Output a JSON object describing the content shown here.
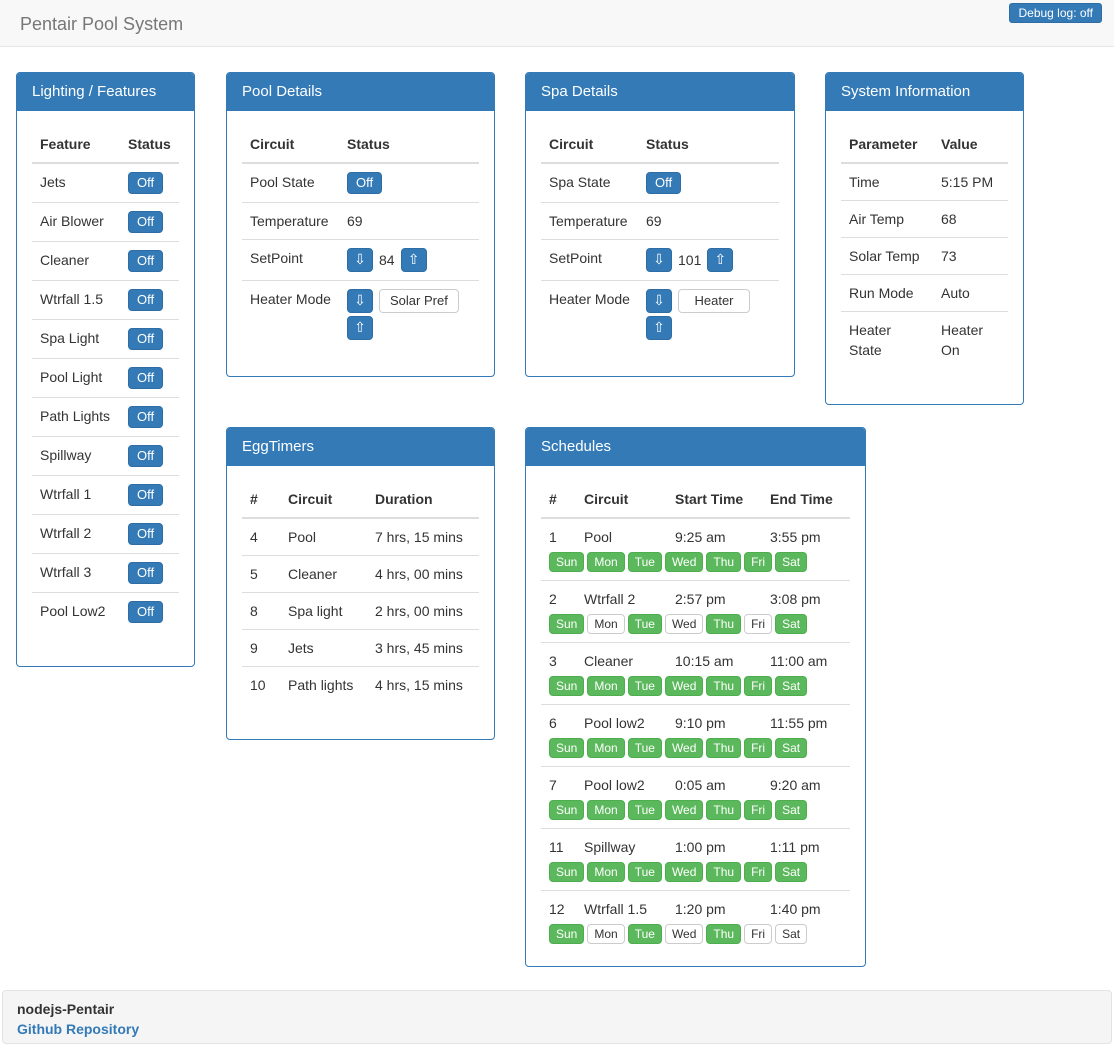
{
  "navbar": {
    "title": "Pentair Pool System",
    "debug_button_label": "Debug log: off"
  },
  "colors": {
    "primary": "#337ab7",
    "primary_border": "#2e6da4",
    "success": "#5cb85c",
    "success_border": "#4cae4c",
    "navbar_bg": "#f8f8f8",
    "panel_border": "#337ab7",
    "link": "#337ab7",
    "footer_bg": "#f5f5f5"
  },
  "controls": {
    "down_glyph": "⇩",
    "up_glyph": "⇧"
  },
  "lighting": {
    "title": "Lighting / Features",
    "columns": {
      "feature": "Feature",
      "status": "Status"
    },
    "rows": [
      {
        "feature": "Jets",
        "status": "Off"
      },
      {
        "feature": "Air Blower",
        "status": "Off"
      },
      {
        "feature": "Cleaner",
        "status": "Off"
      },
      {
        "feature": "Wtrfall 1.5",
        "status": "Off"
      },
      {
        "feature": "Spa Light",
        "status": "Off"
      },
      {
        "feature": "Pool Light",
        "status": "Off"
      },
      {
        "feature": "Path Lights",
        "status": "Off"
      },
      {
        "feature": "Spillway",
        "status": "Off"
      },
      {
        "feature": "Wtrfall 1",
        "status": "Off"
      },
      {
        "feature": "Wtrfall 2",
        "status": "Off"
      },
      {
        "feature": "Wtrfall 3",
        "status": "Off"
      },
      {
        "feature": "Pool Low2",
        "status": "Off"
      }
    ]
  },
  "pool": {
    "title": "Pool Details",
    "columns": {
      "circuit": "Circuit",
      "status": "Status"
    },
    "state_label": "Pool State",
    "state_value": "Off",
    "temperature_label": "Temperature",
    "temperature_value": "69",
    "setpoint_label": "SetPoint",
    "setpoint_value": "84",
    "heater_mode_label": "Heater Mode",
    "heater_mode_value": "Solar Pref"
  },
  "spa": {
    "title": "Spa Details",
    "columns": {
      "circuit": "Circuit",
      "status": "Status"
    },
    "state_label": "Spa State",
    "state_value": "Off",
    "temperature_label": "Temperature",
    "temperature_value": "69",
    "setpoint_label": "SetPoint",
    "setpoint_value": "101",
    "heater_mode_label": "Heater Mode",
    "heater_mode_value": "Heater"
  },
  "system": {
    "title": "System Information",
    "columns": {
      "parameter": "Parameter",
      "value": "Value"
    },
    "rows": [
      {
        "parameter": "Time",
        "value": "5:15 PM"
      },
      {
        "parameter": "Air Temp",
        "value": "68"
      },
      {
        "parameter": "Solar Temp",
        "value": "73"
      },
      {
        "parameter": "Run Mode",
        "value": "Auto"
      },
      {
        "parameter": "Heater State",
        "value": "Heater On"
      }
    ]
  },
  "eggtimers": {
    "title": "EggTimers",
    "columns": {
      "id": "#",
      "circuit": "Circuit",
      "duration": "Duration"
    },
    "rows": [
      {
        "id": "4",
        "circuit": "Pool",
        "duration": "7 hrs, 15 mins"
      },
      {
        "id": "5",
        "circuit": "Cleaner",
        "duration": "4 hrs, 00 mins"
      },
      {
        "id": "8",
        "circuit": "Spa light",
        "duration": "2 hrs, 00 mins"
      },
      {
        "id": "9",
        "circuit": "Jets",
        "duration": "3 hrs, 45 mins"
      },
      {
        "id": "10",
        "circuit": "Path lights",
        "duration": "4 hrs, 15 mins"
      }
    ]
  },
  "schedules": {
    "title": "Schedules",
    "columns": {
      "id": "#",
      "circuit": "Circuit",
      "start": "Start Time",
      "end": "End Time"
    },
    "day_names": [
      "Sun",
      "Mon",
      "Tue",
      "Wed",
      "Thu",
      "Fri",
      "Sat"
    ],
    "rows": [
      {
        "id": "1",
        "circuit": "Pool",
        "start": "9:25 am",
        "end": "3:55 pm",
        "days": [
          1,
          1,
          1,
          1,
          1,
          1,
          1
        ]
      },
      {
        "id": "2",
        "circuit": "Wtrfall 2",
        "start": "2:57 pm",
        "end": "3:08 pm",
        "days": [
          1,
          0,
          1,
          0,
          1,
          0,
          1
        ]
      },
      {
        "id": "3",
        "circuit": "Cleaner",
        "start": "10:15 am",
        "end": "11:00 am",
        "days": [
          1,
          1,
          1,
          1,
          1,
          1,
          1
        ]
      },
      {
        "id": "6",
        "circuit": "Pool low2",
        "start": "9:10 pm",
        "end": "11:55 pm",
        "days": [
          1,
          1,
          1,
          1,
          1,
          1,
          1
        ]
      },
      {
        "id": "7",
        "circuit": "Pool low2",
        "start": "0:05 am",
        "end": "9:20 am",
        "days": [
          1,
          1,
          1,
          1,
          1,
          1,
          1
        ]
      },
      {
        "id": "11",
        "circuit": "Spillway",
        "start": "1:00 pm",
        "end": "1:11 pm",
        "days": [
          1,
          1,
          1,
          1,
          1,
          1,
          1
        ]
      },
      {
        "id": "12",
        "circuit": "Wtrfall 1.5",
        "start": "1:20 pm",
        "end": "1:40 pm",
        "days": [
          1,
          0,
          1,
          0,
          1,
          0,
          0
        ]
      }
    ]
  },
  "footer": {
    "project_name": "nodejs-Pentair",
    "link_label": "Github Repository"
  }
}
